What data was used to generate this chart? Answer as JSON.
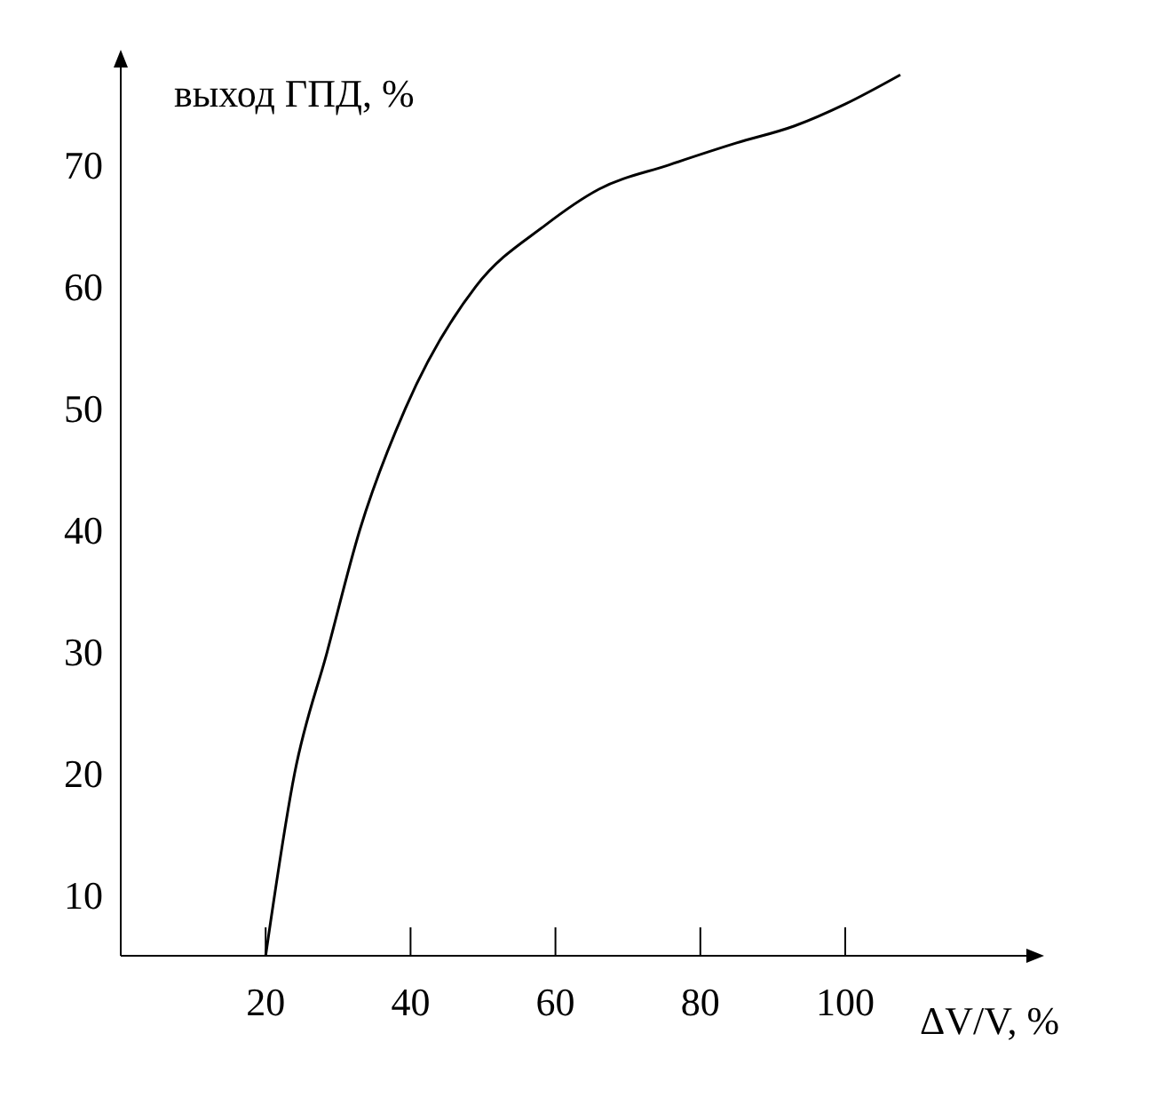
{
  "chart_data": {
    "type": "line",
    "xlabel": "ΔV/V, %",
    "ylabel": "выход ГПД, %",
    "series": [
      {
        "color": "#000000",
        "x": [
          20,
          24,
          28.5,
          33,
          39.3,
          49,
          58.5,
          66,
          75.7,
          85,
          93,
          100,
          107.6
        ],
        "values": [
          5,
          20,
          30,
          40,
          50,
          60,
          65,
          68,
          70,
          71.8,
          73.2,
          75,
          77.4
        ]
      }
    ],
    "xlim": [
      0,
      125
    ],
    "ylim": [
      5,
      78
    ],
    "xticks": [
      20,
      40,
      60,
      80,
      100
    ],
    "yticks": [
      10,
      20,
      30,
      40,
      50,
      60,
      70
    ],
    "grid": false,
    "legend": false,
    "marker": "none",
    "line_style": "solid"
  }
}
